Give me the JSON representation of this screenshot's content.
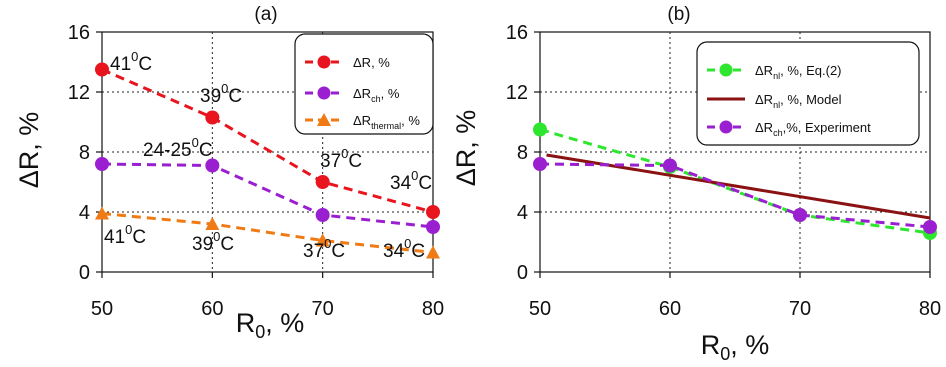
{
  "chart_data": [
    {
      "panel_label": "(a)",
      "type": "line",
      "xlabel": "R",
      "xlabel_sub": "0",
      "xlabel_suffix": ", %",
      "ylabel": "ΔR, %",
      "x": [
        50,
        60,
        70,
        80
      ],
      "xlim": [
        50,
        80
      ],
      "ylim": [
        0,
        16
      ],
      "xticks": [
        "50",
        "60",
        "70",
        "80"
      ],
      "yticks": [
        "0",
        "4",
        "8",
        "12",
        "16"
      ],
      "grid": true,
      "legend_position": "top-right",
      "series": [
        {
          "legend_main": "ΔR, %",
          "legend_sub": "",
          "legend_rest": "",
          "color": "#e8141e",
          "marker": "circle",
          "line": "dashed",
          "values": [
            13.5,
            10.3,
            6.0,
            4.0
          ]
        },
        {
          "legend_main": "ΔR",
          "legend_sub": "ch",
          "legend_rest": ", %",
          "color": "#9a1fd0",
          "marker": "circle",
          "line": "dashed",
          "values": [
            7.2,
            7.1,
            3.8,
            3.0
          ]
        },
        {
          "legend_main": "ΔR",
          "legend_sub": "thermal",
          "legend_rest": ", %",
          "color": "#f07a14",
          "marker": "triangle",
          "line": "dashed",
          "values": [
            3.9,
            3.2,
            2.1,
            1.3
          ]
        }
      ],
      "annotations": [
        {
          "base": "41",
          "sup": "0",
          "unit": "C"
        },
        {
          "base": "39",
          "sup": "0",
          "unit": "C"
        },
        {
          "base": "37",
          "sup": "0",
          "unit": "C"
        },
        {
          "base": "34",
          "sup": "0",
          "unit": "C"
        },
        {
          "base": "24-25",
          "sup": "0",
          "unit": "C"
        },
        {
          "base": "41",
          "sup": "0",
          "unit": "C"
        },
        {
          "base": "39",
          "sup": "0",
          "unit": "C"
        },
        {
          "base": "37",
          "sup": "0",
          "unit": "C"
        },
        {
          "base": "34",
          "sup": "0",
          "unit": "C"
        }
      ]
    },
    {
      "panel_label": "(b)",
      "type": "line",
      "xlabel": "R",
      "xlabel_sub": "0",
      "xlabel_suffix": ", %",
      "ylabel": "ΔR, %",
      "x": [
        50,
        60,
        70,
        80
      ],
      "xlim": [
        50,
        80
      ],
      "ylim": [
        0,
        16
      ],
      "xticks": [
        "50",
        "60",
        "70",
        "80"
      ],
      "yticks": [
        "0",
        "4",
        "8",
        "12",
        "16"
      ],
      "grid": true,
      "legend_position": "top-right",
      "series": [
        {
          "legend_main": "ΔR",
          "legend_sub": "nl",
          "legend_rest": ", %, Eq.(2)",
          "color": "#2ee62e",
          "marker": "circle",
          "line": "dashed",
          "x": [
            50,
            60,
            70,
            80
          ],
          "values": [
            9.5,
            7.0,
            3.8,
            2.6
          ]
        },
        {
          "legend_main": "ΔR",
          "legend_sub": "nl",
          "legend_rest": ", %, Model",
          "color": "#8a1212",
          "marker": "none",
          "line": "solid",
          "x": [
            50.5,
            80
          ],
          "values": [
            7.8,
            3.6
          ]
        },
        {
          "legend_main": "ΔR",
          "legend_sub": "ch",
          "legend_rest": ",%, Experiment",
          "color": "#9a1fd0",
          "marker": "circle",
          "line": "dashed",
          "x": [
            50,
            60,
            70,
            80
          ],
          "values": [
            7.2,
            7.1,
            3.8,
            3.0
          ]
        }
      ]
    }
  ]
}
